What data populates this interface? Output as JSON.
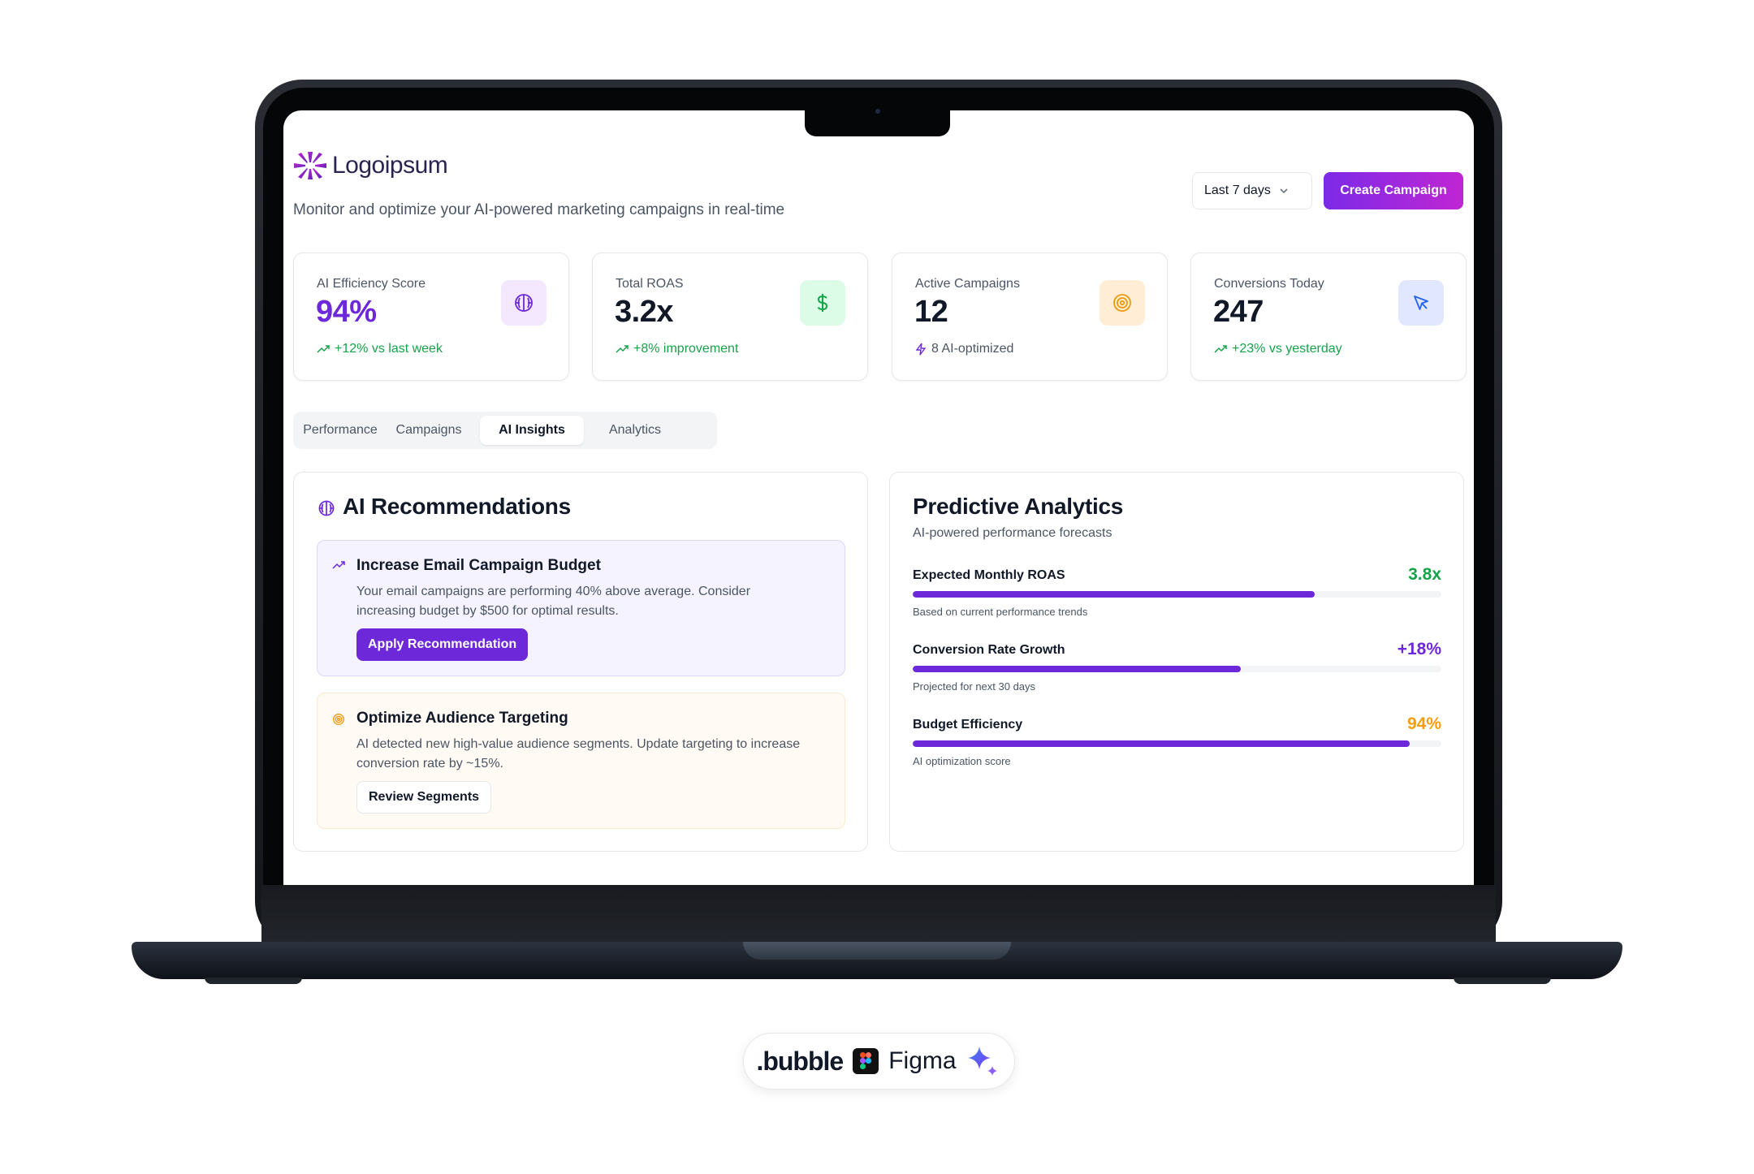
{
  "app": {
    "logo_text": "Logoipsum",
    "subtitle": "Monitor and optimize your AI-powered marketing campaigns in real-time",
    "range_select": "Last 7 days",
    "create_button": "Create Campaign",
    "accent": "#6d28d9"
  },
  "stats": [
    {
      "label": "AI Efficiency Score",
      "value": "94%",
      "note": "+12% vs last week",
      "icon": "brain-icon"
    },
    {
      "label": "Total ROAS",
      "value": "3.2x",
      "note": "+8% improvement",
      "icon": "dollar-icon"
    },
    {
      "label": "Active Campaigns",
      "value": "12",
      "note": "8 AI-optimized",
      "icon": "target-icon"
    },
    {
      "label": "Conversions Today",
      "value": "247",
      "note": "+23% vs yesterday",
      "icon": "cursor-icon"
    }
  ],
  "tabs": [
    "Performance",
    "Campaigns",
    "AI Insights",
    "Analytics"
  ],
  "active_tab": "AI Insights",
  "recommendations": {
    "title": "AI Recommendations",
    "items": [
      {
        "title": "Increase Email Campaign Budget",
        "desc": "Your email campaigns are performing 40% above average. Consider increasing budget by $500 for optimal results.",
        "button": "Apply Recommendation"
      },
      {
        "title": "Optimize Audience Targeting",
        "desc": "AI detected new high-value audience segments. Update targeting to increase conversion rate by ~15%.",
        "button": "Review Segments"
      }
    ]
  },
  "predictive": {
    "title": "Predictive Analytics",
    "subtitle": "AI-powered performance forecasts",
    "metrics": [
      {
        "name": "Expected Monthly ROAS",
        "value": "3.8x",
        "note": "Based on current performance trends",
        "progress": 0.76,
        "color": "#16a34a"
      },
      {
        "name": "Conversion Rate Growth",
        "value": "+18%",
        "note": "Projected for next 30 days",
        "progress": 0.62,
        "color": "#6d28d9"
      },
      {
        "name": "Budget Efficiency",
        "value": "94%",
        "note": "AI optimization score",
        "progress": 0.94,
        "color": "#f59e0b"
      }
    ]
  },
  "badge": {
    "bubble": ".bubble",
    "figma": "Figma"
  }
}
